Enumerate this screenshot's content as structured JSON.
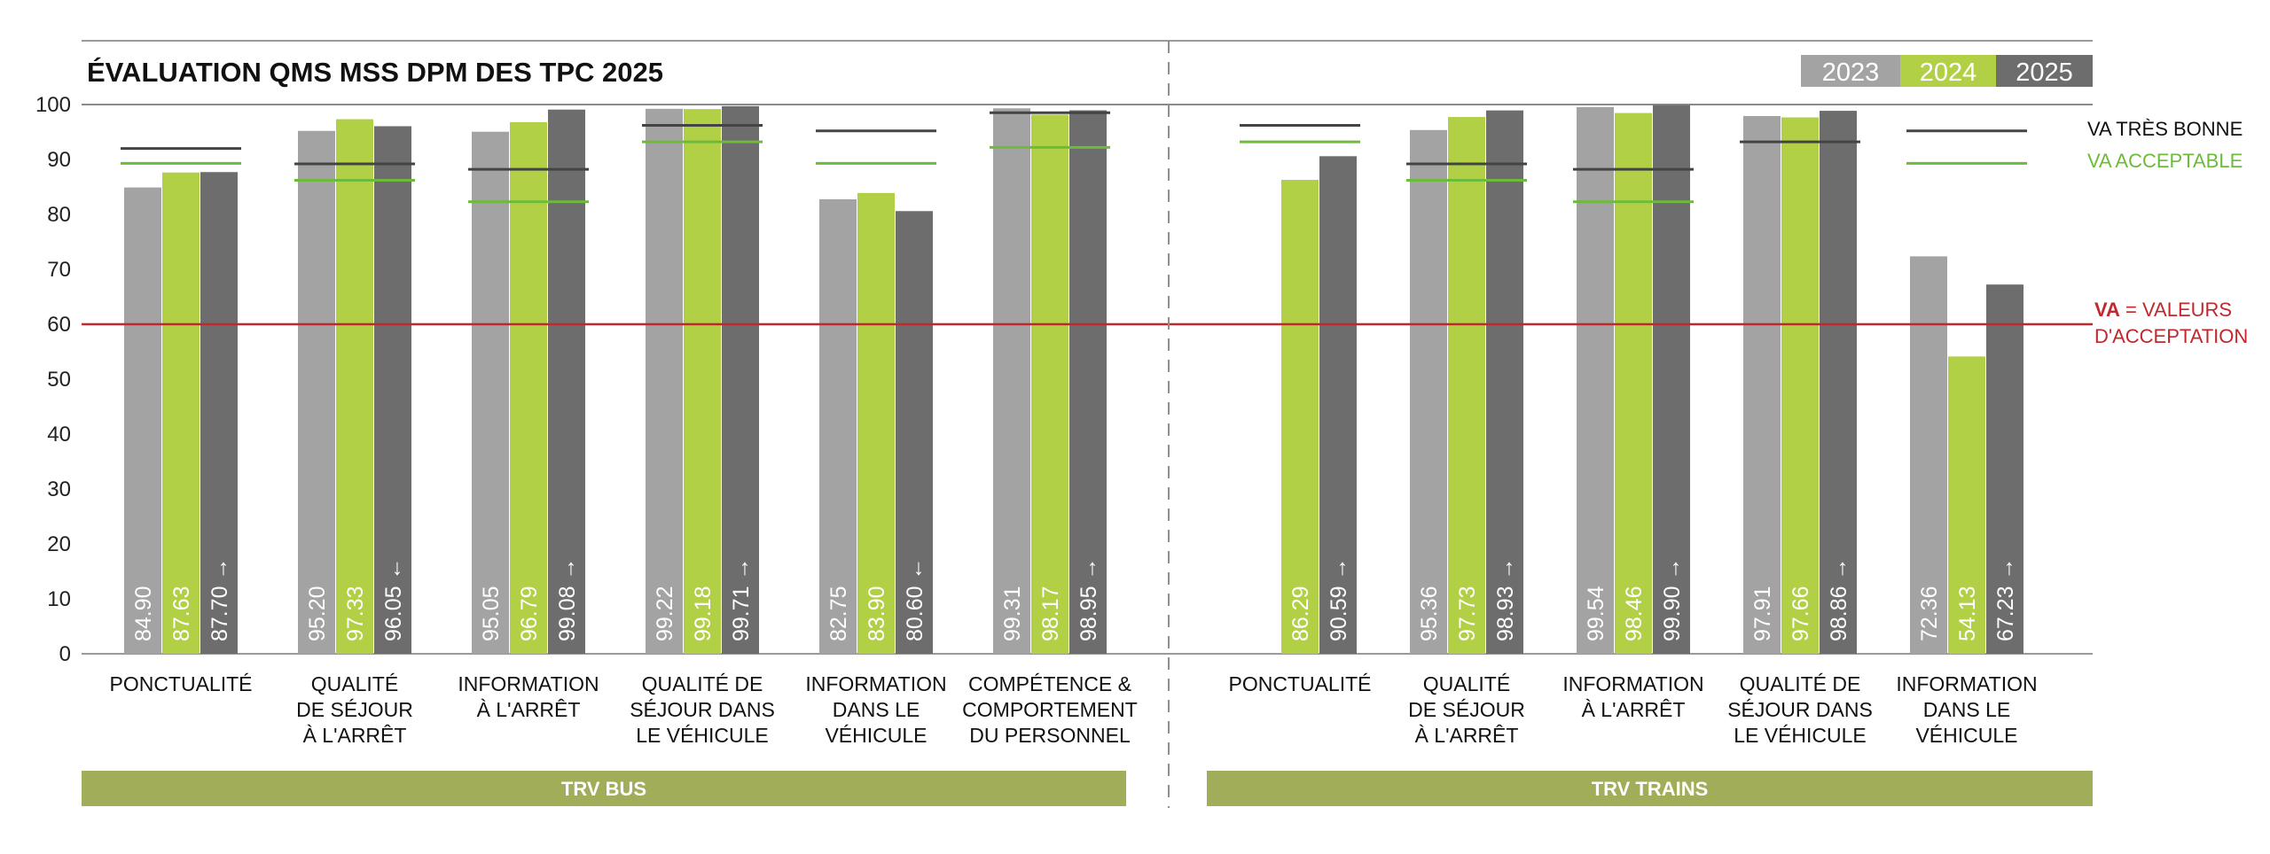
{
  "chart_data": {
    "type": "bar",
    "title": "ÉVALUATION QMS MSS DPM DES TPC 2025",
    "ylim": [
      0,
      100
    ],
    "yticks": [
      0,
      10,
      20,
      30,
      40,
      50,
      60,
      70,
      80,
      90,
      100
    ],
    "series_names": [
      "2023",
      "2024",
      "2025"
    ],
    "colors": {
      "2023": "#a3a3a3",
      "2024": "#b2d046",
      "2025": "#6d6d6d",
      "very_good": "#444444",
      "acceptable": "#6dbb3a",
      "va_line": "#c0282d",
      "group_band": "#a2ad5a"
    },
    "acceptance_line": {
      "value": 60,
      "label_bold": "VA",
      "label_rest": " =  VALEURS",
      "label_line2": "D'ACCEPTATION"
    },
    "legend_refs": {
      "very_good": "VA TRÈS BONNE",
      "acceptable": "VA ACCEPTABLE"
    },
    "groups": [
      {
        "name": "TRV BUS",
        "categories": [
          {
            "label": [
              "PONCTUALITÉ"
            ],
            "values": [
              84.9,
              87.63,
              87.7
            ],
            "labels": [
              "84.90",
              "87.63",
              "87.70"
            ],
            "trend": "up",
            "very_good": 92,
            "acceptable": 89.3
          },
          {
            "label": [
              "QUALITÉ",
              "DE SÉJOUR",
              "À L'ARRÊT"
            ],
            "values": [
              95.2,
              97.33,
              96.05
            ],
            "labels": [
              "95.20",
              "97.33",
              "96.05"
            ],
            "trend": "down",
            "very_good": 89.2,
            "acceptable": 86.2
          },
          {
            "label": [
              "INFORMATION",
              "À L'ARRÊT"
            ],
            "values": [
              95.05,
              96.79,
              99.08
            ],
            "labels": [
              "95.05",
              "96.79",
              "99.08"
            ],
            "trend": "up",
            "very_good": 88.2,
            "acceptable": 82.3
          },
          {
            "label": [
              "QUALITÉ DE",
              "SÉJOUR DANS",
              "LE VÉHICULE"
            ],
            "values": [
              99.22,
              99.18,
              99.71
            ],
            "labels": [
              "99.22",
              "99.18",
              "99.71"
            ],
            "trend": "up",
            "very_good": 96.2,
            "acceptable": 93.2
          },
          {
            "label": [
              "INFORMATION",
              "DANS LE",
              "VÉHICULE"
            ],
            "values": [
              82.75,
              83.9,
              80.6
            ],
            "labels": [
              "82.75",
              "83.90",
              "80.60"
            ],
            "trend": "down",
            "very_good": 95.2,
            "acceptable": 89.3
          },
          {
            "label": [
              "COMPÉTENCE &",
              "COMPORTEMENT",
              "DU PERSONNEL"
            ],
            "values": [
              99.31,
              98.17,
              98.95
            ],
            "labels": [
              "99.31",
              "98.17",
              "98.95"
            ],
            "trend": "up",
            "very_good": 98.5,
            "acceptable": 92.2
          }
        ]
      },
      {
        "name": "TRV TRAINS",
        "categories": [
          {
            "label": [
              "PONCTUALITÉ"
            ],
            "values": [
              null,
              86.29,
              90.59
            ],
            "labels": [
              "",
              "86.29",
              "90.59"
            ],
            "trend": "up",
            "very_good": 96.2,
            "acceptable": 93.2
          },
          {
            "label": [
              "QUALITÉ",
              "DE SÉJOUR",
              "À L'ARRÊT"
            ],
            "values": [
              95.36,
              97.73,
              98.93
            ],
            "labels": [
              "95.36",
              "97.73",
              "98.93"
            ],
            "trend": "up",
            "very_good": 89.2,
            "acceptable": 86.2
          },
          {
            "label": [
              "INFORMATION",
              "À L'ARRÊT"
            ],
            "values": [
              99.54,
              98.46,
              99.9
            ],
            "labels": [
              "99.54",
              "98.46",
              "99.90"
            ],
            "trend": "up",
            "very_good": 88.2,
            "acceptable": 82.3
          },
          {
            "label": [
              "QUALITÉ DE",
              "SÉJOUR DANS",
              "LE VÉHICULE"
            ],
            "values": [
              97.91,
              97.66,
              98.86
            ],
            "labels": [
              "97.91",
              "97.66",
              "98.86"
            ],
            "trend": "up",
            "very_good": 93.2,
            "acceptable": null
          },
          {
            "label": [
              "INFORMATION",
              "DANS LE",
              "VÉHICULE"
            ],
            "values": [
              72.36,
              54.13,
              67.23
            ],
            "labels": [
              "72.36",
              "54.13",
              "67.23"
            ],
            "trend": "up",
            "very_good": 95.2,
            "acceptable": 89.3
          }
        ]
      }
    ]
  }
}
